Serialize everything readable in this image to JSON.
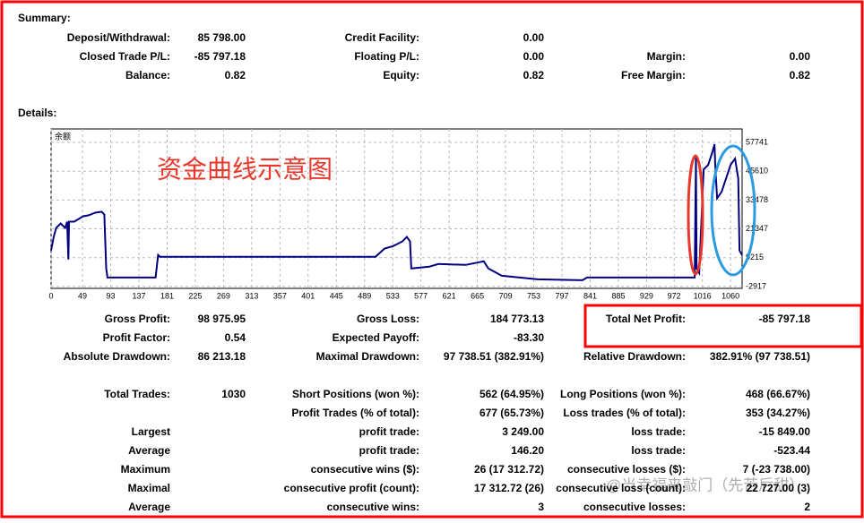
{
  "summary": {
    "title": "Summary:",
    "rows": [
      [
        [
          "Deposit/Withdrawal:",
          "85 798.00"
        ],
        [
          "Credit Facility:",
          "0.00"
        ]
      ],
      [
        [
          "Closed Trade P/L:",
          "-85 797.18"
        ],
        [
          "Floating P/L:",
          "0.00"
        ],
        [
          "Margin:",
          "0.00"
        ]
      ],
      [
        [
          "Balance:",
          "0.82"
        ],
        [
          "Equity:",
          "0.82"
        ],
        [
          "Free Margin:",
          "0.82"
        ]
      ]
    ]
  },
  "details": {
    "title": "Details:",
    "rows": [
      [
        [
          "Gross Profit:",
          "98 975.95"
        ],
        [
          "Gross Loss:",
          "184 773.13"
        ],
        [
          "Total Net Profit:",
          "-85 797.18"
        ]
      ],
      [
        [
          "Profit Factor:",
          "0.54"
        ],
        [
          "Expected Payoff:",
          "-83.30"
        ]
      ],
      [
        [
          "Absolute Drawdown:",
          "86 213.18"
        ],
        [
          "Maximal Drawdown:",
          "97 738.51 (382.91%)"
        ],
        [
          "Relative Drawdown:",
          "382.91% (97 738.51)"
        ]
      ],
      [
        [
          "Total Trades:",
          "1030"
        ],
        [
          "Short Positions (won %):",
          "562 (64.95%)"
        ],
        [
          "Long Positions (won %):",
          "468 (66.67%)"
        ]
      ],
      [
        null,
        [
          "Profit Trades (% of total):",
          "677 (65.73%)"
        ],
        [
          "Loss trades (% of total):",
          "353 (34.27%)"
        ]
      ],
      [
        [
          "Largest"
        ],
        [
          "profit trade:",
          "3 249.00"
        ],
        [
          "loss trade:",
          "-15 849.00"
        ]
      ],
      [
        [
          "Average"
        ],
        [
          "profit trade:",
          "146.20"
        ],
        [
          "loss trade:",
          "-523.44"
        ]
      ],
      [
        [
          "Maximum"
        ],
        [
          "consecutive wins ($):",
          "26 (17 312.72)"
        ],
        [
          "consecutive losses ($):",
          "7 (-23 738.00)"
        ]
      ],
      [
        [
          "Maximal"
        ],
        [
          "consecutive profit (count):",
          "17 312.72 (26)"
        ],
        [
          "consecutive loss (count):",
          "22 727.00 (3)"
        ]
      ],
      [
        [
          "Average"
        ],
        [
          "consecutive wins:",
          "3"
        ],
        [
          "consecutive losses:",
          "2"
        ]
      ]
    ]
  },
  "chart_data": {
    "type": "line",
    "series_label": "余额",
    "annotation": "资金曲线示意图",
    "watermark": "@当幸福来敲门（先苦后甜）",
    "x": [
      0,
      4,
      8,
      15,
      22,
      25,
      27,
      28,
      36,
      43,
      50,
      58,
      69,
      79,
      83,
      86,
      88,
      163,
      167,
      170,
      506,
      520,
      534,
      548,
      555,
      560,
      562,
      590,
      604,
      647,
      675,
      682,
      703,
      759,
      829,
      836,
      899,
      983,
      1004,
      1006,
      1007,
      1011,
      1018,
      1025,
      1032,
      1035,
      1036,
      1039,
      1046,
      1060,
      1067,
      1072,
      1074,
      1078
    ],
    "series": [
      {
        "name": "余额",
        "color": "#000080",
        "values": [
          12249,
          17936,
          21727,
          23622,
          21727,
          24380,
          8458,
          24380,
          24380,
          25518,
          26654,
          27034,
          28171,
          28550,
          27413,
          4667,
          876,
          876,
          10354,
          9596,
          9596,
          13008,
          14144,
          16040,
          17936,
          16040,
          4667,
          5425,
          6562,
          6183,
          7700,
          4667,
          1634,
          118,
          -262,
          876,
          876,
          876,
          876,
          52054,
          4667,
          2771,
          46368,
          48264,
          53950,
          56983,
          48264,
          34237,
          36891,
          48264,
          50918,
          42577,
          12249,
          10354
        ]
      }
    ],
    "xlim": [
      0,
      1078
    ],
    "ylim": [
      -3700,
      63400
    ],
    "xticks": [
      0,
      49,
      93,
      137,
      181,
      225,
      269,
      313,
      357,
      401,
      445,
      489,
      533,
      577,
      621,
      665,
      709,
      753,
      797,
      841,
      885,
      929,
      972,
      1016,
      1060
    ],
    "yticks": [
      -2917,
      9215,
      21347,
      33478,
      45610,
      57741
    ],
    "grid": true
  }
}
